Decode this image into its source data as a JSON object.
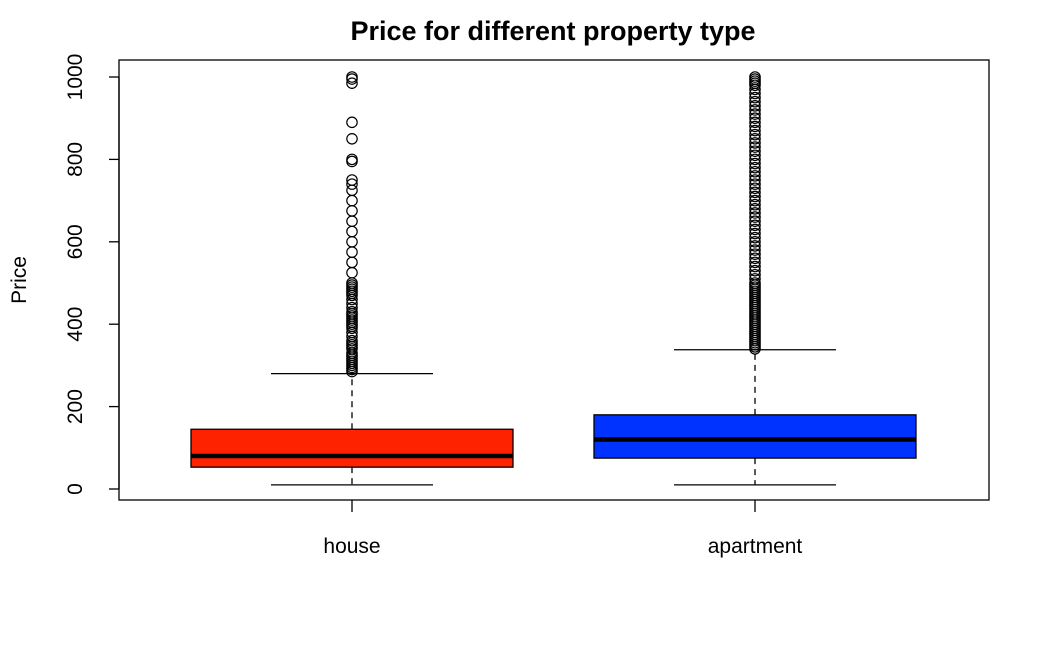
{
  "chart_data": {
    "type": "box",
    "title": "Price for different property type",
    "xlabel": "",
    "ylabel": "Price",
    "ylim": [
      0,
      1000
    ],
    "yticks": [
      0,
      200,
      400,
      600,
      800,
      1000
    ],
    "grid": false,
    "legend": "none",
    "categories": [
      "house",
      "apartment"
    ],
    "boxes": [
      {
        "category": "house",
        "color": "#ff2200",
        "whisker_low": 10,
        "q1": 53,
        "median": 80,
        "q3": 145,
        "whisker_high": 280,
        "outliers": [
          285,
          290,
          295,
          300,
          305,
          310,
          315,
          320,
          325,
          330,
          340,
          345,
          350,
          355,
          360,
          370,
          380,
          390,
          395,
          400,
          405,
          410,
          415,
          420,
          425,
          430,
          440,
          450,
          460,
          470,
          475,
          480,
          485,
          490,
          495,
          500,
          525,
          550,
          575,
          600,
          625,
          650,
          675,
          700,
          725,
          740,
          750,
          795,
          800,
          850,
          890,
          985,
          995,
          1000
        ]
      },
      {
        "category": "apartment",
        "color": "#0033ff",
        "whisker_low": 10,
        "q1": 75,
        "median": 120,
        "q3": 180,
        "whisker_high": 338,
        "outliers": [
          340,
          345,
          350,
          355,
          360,
          365,
          370,
          375,
          380,
          385,
          390,
          395,
          400,
          405,
          410,
          415,
          420,
          425,
          430,
          435,
          440,
          445,
          450,
          455,
          460,
          465,
          470,
          475,
          480,
          485,
          490,
          495,
          500,
          510,
          520,
          530,
          540,
          550,
          560,
          570,
          580,
          590,
          600,
          610,
          620,
          630,
          640,
          650,
          660,
          670,
          680,
          690,
          700,
          710,
          720,
          730,
          740,
          750,
          760,
          770,
          780,
          790,
          800,
          810,
          820,
          830,
          840,
          850,
          860,
          870,
          880,
          890,
          900,
          910,
          920,
          930,
          940,
          950,
          960,
          970,
          980,
          985,
          990,
          995,
          1000
        ]
      }
    ]
  }
}
